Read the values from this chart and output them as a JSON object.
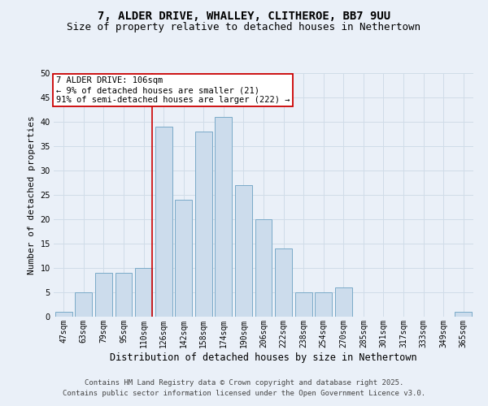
{
  "title": "7, ALDER DRIVE, WHALLEY, CLITHEROE, BB7 9UU",
  "subtitle": "Size of property relative to detached houses in Nethertown",
  "xlabel": "Distribution of detached houses by size in Nethertown",
  "ylabel": "Number of detached properties",
  "categories": [
    "47sqm",
    "63sqm",
    "79sqm",
    "95sqm",
    "110sqm",
    "126sqm",
    "142sqm",
    "158sqm",
    "174sqm",
    "190sqm",
    "206sqm",
    "222sqm",
    "238sqm",
    "254sqm",
    "270sqm",
    "285sqm",
    "301sqm",
    "317sqm",
    "333sqm",
    "349sqm",
    "365sqm"
  ],
  "values": [
    1,
    5,
    9,
    9,
    10,
    39,
    24,
    38,
    41,
    27,
    20,
    14,
    5,
    5,
    6,
    0,
    0,
    0,
    0,
    0,
    1
  ],
  "bar_color": "#ccdcec",
  "bar_edge_color": "#7aaac8",
  "grid_color": "#d0dce8",
  "background_color": "#eaf0f8",
  "red_line_index": 4,
  "annotation_text": "7 ALDER DRIVE: 106sqm\n← 9% of detached houses are smaller (21)\n91% of semi-detached houses are larger (222) →",
  "annotation_box_color": "#ffffff",
  "annotation_box_edge": "#cc0000",
  "ylim": [
    0,
    50
  ],
  "yticks": [
    0,
    5,
    10,
    15,
    20,
    25,
    30,
    35,
    40,
    45,
    50
  ],
  "footer_line1": "Contains HM Land Registry data © Crown copyright and database right 2025.",
  "footer_line2": "Contains public sector information licensed under the Open Government Licence v3.0.",
  "title_fontsize": 10,
  "subtitle_fontsize": 9,
  "xlabel_fontsize": 8.5,
  "ylabel_fontsize": 8,
  "tick_fontsize": 7,
  "annotation_fontsize": 7.5,
  "footer_fontsize": 6.5
}
